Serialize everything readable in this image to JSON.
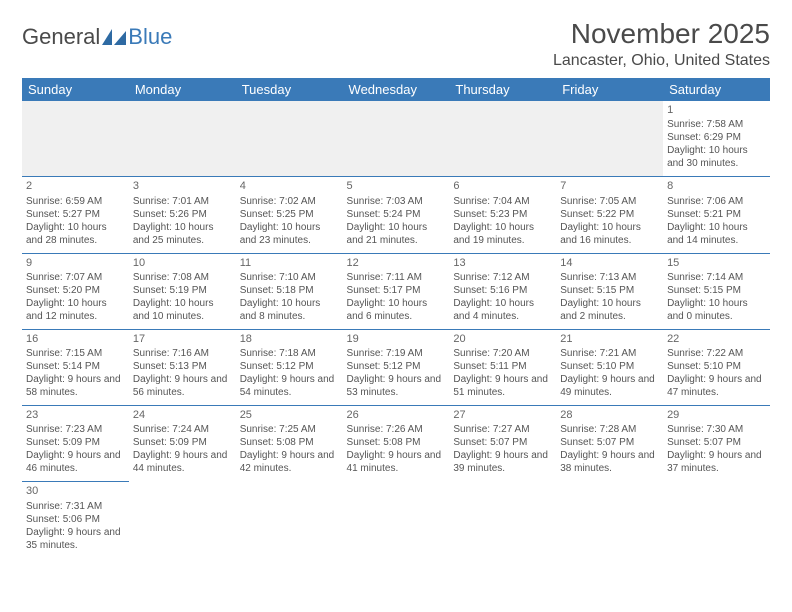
{
  "logo": {
    "text_general": "General",
    "text_blue": "Blue"
  },
  "header": {
    "month_title": "November 2025",
    "location": "Lancaster, Ohio, United States"
  },
  "calendar": {
    "day_headers": [
      "Sunday",
      "Monday",
      "Tuesday",
      "Wednesday",
      "Thursday",
      "Friday",
      "Saturday"
    ],
    "header_bg": "#3a7ab8",
    "header_fg": "#ffffff",
    "border_color": "#3a7ab8",
    "empty_bg": "#f0f0f0",
    "cell_font_size": 10,
    "header_font_size": 13,
    "weeks": [
      [
        null,
        null,
        null,
        null,
        null,
        null,
        {
          "n": "1",
          "sunrise": "Sunrise: 7:58 AM",
          "sunset": "Sunset: 6:29 PM",
          "daylight": "Daylight: 10 hours and 30 minutes."
        }
      ],
      [
        {
          "n": "2",
          "sunrise": "Sunrise: 6:59 AM",
          "sunset": "Sunset: 5:27 PM",
          "daylight": "Daylight: 10 hours and 28 minutes."
        },
        {
          "n": "3",
          "sunrise": "Sunrise: 7:01 AM",
          "sunset": "Sunset: 5:26 PM",
          "daylight": "Daylight: 10 hours and 25 minutes."
        },
        {
          "n": "4",
          "sunrise": "Sunrise: 7:02 AM",
          "sunset": "Sunset: 5:25 PM",
          "daylight": "Daylight: 10 hours and 23 minutes."
        },
        {
          "n": "5",
          "sunrise": "Sunrise: 7:03 AM",
          "sunset": "Sunset: 5:24 PM",
          "daylight": "Daylight: 10 hours and 21 minutes."
        },
        {
          "n": "6",
          "sunrise": "Sunrise: 7:04 AM",
          "sunset": "Sunset: 5:23 PM",
          "daylight": "Daylight: 10 hours and 19 minutes."
        },
        {
          "n": "7",
          "sunrise": "Sunrise: 7:05 AM",
          "sunset": "Sunset: 5:22 PM",
          "daylight": "Daylight: 10 hours and 16 minutes."
        },
        {
          "n": "8",
          "sunrise": "Sunrise: 7:06 AM",
          "sunset": "Sunset: 5:21 PM",
          "daylight": "Daylight: 10 hours and 14 minutes."
        }
      ],
      [
        {
          "n": "9",
          "sunrise": "Sunrise: 7:07 AM",
          "sunset": "Sunset: 5:20 PM",
          "daylight": "Daylight: 10 hours and 12 minutes."
        },
        {
          "n": "10",
          "sunrise": "Sunrise: 7:08 AM",
          "sunset": "Sunset: 5:19 PM",
          "daylight": "Daylight: 10 hours and 10 minutes."
        },
        {
          "n": "11",
          "sunrise": "Sunrise: 7:10 AM",
          "sunset": "Sunset: 5:18 PM",
          "daylight": "Daylight: 10 hours and 8 minutes."
        },
        {
          "n": "12",
          "sunrise": "Sunrise: 7:11 AM",
          "sunset": "Sunset: 5:17 PM",
          "daylight": "Daylight: 10 hours and 6 minutes."
        },
        {
          "n": "13",
          "sunrise": "Sunrise: 7:12 AM",
          "sunset": "Sunset: 5:16 PM",
          "daylight": "Daylight: 10 hours and 4 minutes."
        },
        {
          "n": "14",
          "sunrise": "Sunrise: 7:13 AM",
          "sunset": "Sunset: 5:15 PM",
          "daylight": "Daylight: 10 hours and 2 minutes."
        },
        {
          "n": "15",
          "sunrise": "Sunrise: 7:14 AM",
          "sunset": "Sunset: 5:15 PM",
          "daylight": "Daylight: 10 hours and 0 minutes."
        }
      ],
      [
        {
          "n": "16",
          "sunrise": "Sunrise: 7:15 AM",
          "sunset": "Sunset: 5:14 PM",
          "daylight": "Daylight: 9 hours and 58 minutes."
        },
        {
          "n": "17",
          "sunrise": "Sunrise: 7:16 AM",
          "sunset": "Sunset: 5:13 PM",
          "daylight": "Daylight: 9 hours and 56 minutes."
        },
        {
          "n": "18",
          "sunrise": "Sunrise: 7:18 AM",
          "sunset": "Sunset: 5:12 PM",
          "daylight": "Daylight: 9 hours and 54 minutes."
        },
        {
          "n": "19",
          "sunrise": "Sunrise: 7:19 AM",
          "sunset": "Sunset: 5:12 PM",
          "daylight": "Daylight: 9 hours and 53 minutes."
        },
        {
          "n": "20",
          "sunrise": "Sunrise: 7:20 AM",
          "sunset": "Sunset: 5:11 PM",
          "daylight": "Daylight: 9 hours and 51 minutes."
        },
        {
          "n": "21",
          "sunrise": "Sunrise: 7:21 AM",
          "sunset": "Sunset: 5:10 PM",
          "daylight": "Daylight: 9 hours and 49 minutes."
        },
        {
          "n": "22",
          "sunrise": "Sunrise: 7:22 AM",
          "sunset": "Sunset: 5:10 PM",
          "daylight": "Daylight: 9 hours and 47 minutes."
        }
      ],
      [
        {
          "n": "23",
          "sunrise": "Sunrise: 7:23 AM",
          "sunset": "Sunset: 5:09 PM",
          "daylight": "Daylight: 9 hours and 46 minutes."
        },
        {
          "n": "24",
          "sunrise": "Sunrise: 7:24 AM",
          "sunset": "Sunset: 5:09 PM",
          "daylight": "Daylight: 9 hours and 44 minutes."
        },
        {
          "n": "25",
          "sunrise": "Sunrise: 7:25 AM",
          "sunset": "Sunset: 5:08 PM",
          "daylight": "Daylight: 9 hours and 42 minutes."
        },
        {
          "n": "26",
          "sunrise": "Sunrise: 7:26 AM",
          "sunset": "Sunset: 5:08 PM",
          "daylight": "Daylight: 9 hours and 41 minutes."
        },
        {
          "n": "27",
          "sunrise": "Sunrise: 7:27 AM",
          "sunset": "Sunset: 5:07 PM",
          "daylight": "Daylight: 9 hours and 39 minutes."
        },
        {
          "n": "28",
          "sunrise": "Sunrise: 7:28 AM",
          "sunset": "Sunset: 5:07 PM",
          "daylight": "Daylight: 9 hours and 38 minutes."
        },
        {
          "n": "29",
          "sunrise": "Sunrise: 7:30 AM",
          "sunset": "Sunset: 5:07 PM",
          "daylight": "Daylight: 9 hours and 37 minutes."
        }
      ],
      [
        {
          "n": "30",
          "sunrise": "Sunrise: 7:31 AM",
          "sunset": "Sunset: 5:06 PM",
          "daylight": "Daylight: 9 hours and 35 minutes."
        },
        null,
        null,
        null,
        null,
        null,
        null
      ]
    ]
  }
}
